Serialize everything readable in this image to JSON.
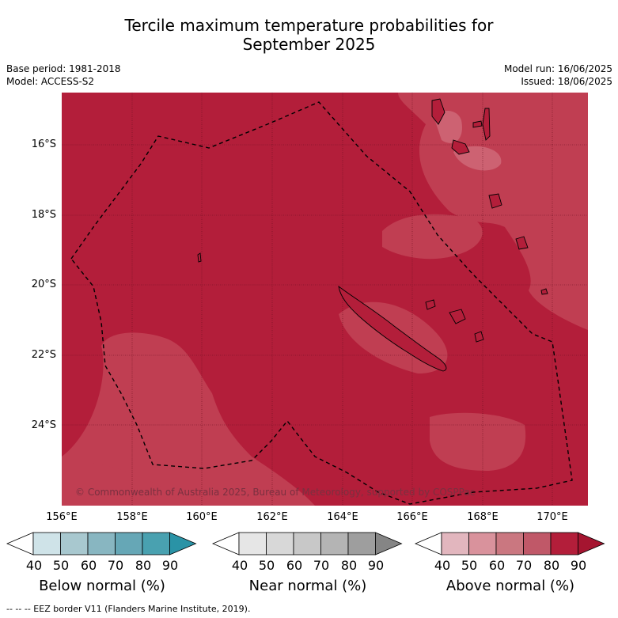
{
  "title_line1": "Tercile maximum temperature probabilities for",
  "title_line2": "September 2025",
  "base_period": "Base period: 1981-2018",
  "model": "Model: ACCESS-S2",
  "model_run": "Model run: 16/06/2025",
  "issued": "Issued: 18/06/2025",
  "copyright": "© Commonwealth of Australia 2025, Bureau of Meteorology, supported by COSPPac",
  "lat_labels": [
    "16°S",
    "18°S",
    "20°S",
    "22°S",
    "24°S"
  ],
  "lon_labels": [
    "156°E",
    "158°E",
    "160°E",
    "162°E",
    "164°E",
    "166°E",
    "168°E",
    "170°E"
  ],
  "colorbars": [
    {
      "title": "Below normal (%)",
      "ticks": [
        "40",
        "50",
        "60",
        "70",
        "80",
        "90"
      ],
      "colors": [
        "#ffffff",
        "#cfe3e8",
        "#a8c8cf",
        "#88b6c1",
        "#66a7b6",
        "#49a1b0",
        "#2a93a6"
      ]
    },
    {
      "title": "Near normal (%)",
      "ticks": [
        "40",
        "50",
        "60",
        "70",
        "80",
        "90"
      ],
      "colors": [
        "#ffffff",
        "#e6e6e6",
        "#d8d8d8",
        "#c8c8c8",
        "#b4b4b4",
        "#9e9e9e",
        "#858585"
      ]
    },
    {
      "title": "Above normal (%)",
      "ticks": [
        "40",
        "50",
        "60",
        "70",
        "80",
        "90"
      ],
      "colors": [
        "#ffffff",
        "#e2b6be",
        "#d9929c",
        "#ca7780",
        "#c05868",
        "#b31e3a",
        "#a51530"
      ]
    }
  ],
  "map_colors": {
    "dominant": "#b31e3a",
    "lighter": "#c03e52",
    "lightest": "#cd6272"
  },
  "footer": "--  --  -- EEZ border V11 (Flanders Marine Institute, 2019)."
}
